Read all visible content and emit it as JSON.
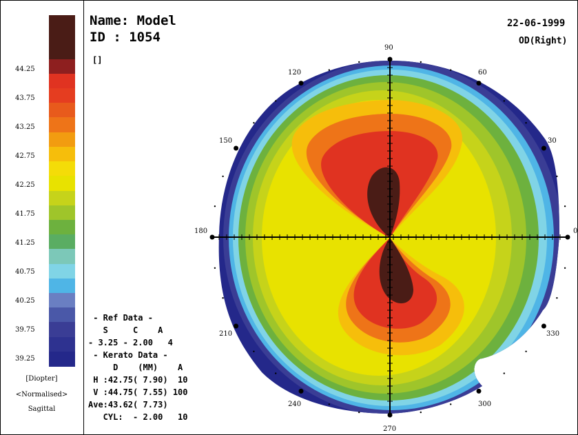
{
  "patient": {
    "name_line": "Name: Model",
    "id_line": "ID : 1054",
    "bracket": "[]"
  },
  "exam": {
    "date": "22-06-1999",
    "eye": "OD(Right)"
  },
  "scale": {
    "tick_labels": [
      "44.25",
      "43.75",
      "43.25",
      "42.75",
      "42.25",
      "41.75",
      "41.25",
      "40.75",
      "40.25",
      "39.75",
      "39.25"
    ],
    "colors": [
      "#4a1c16",
      "#4a1c16",
      "#4a1c16",
      "#8e1f1f",
      "#e03321",
      "#e53d20",
      "#e85a1c",
      "#ee7418",
      "#f29c10",
      "#f6be0b",
      "#f4dc08",
      "#e8e200",
      "#c6d31a",
      "#9fc52a",
      "#6db13e",
      "#5aad62",
      "#7cc8b8",
      "#80d4e6",
      "#4fb5e6",
      "#6a7fc2",
      "#4a58a8",
      "#3a3d95",
      "#2e3290",
      "#24288a"
    ],
    "unit": "[Diopter]",
    "mode": "<Normalised>",
    "type": "Sagittal"
  },
  "axis_labels": [
    "90",
    "60",
    "30",
    "0",
    "330",
    "300",
    "270",
    "240",
    "210",
    "180",
    "150",
    "120"
  ],
  "data_lines": [
    " - Ref Data -",
    "   S     C    A",
    "- 3.25 - 2.00   4",
    " - Kerato Data -",
    "     D    (MM)    A",
    " H :42.75( 7.90)  10",
    " V :44.75( 7.55) 100",
    "Ave:43.62( 7.73)",
    "   CYL:  - 2.00   10"
  ]
}
